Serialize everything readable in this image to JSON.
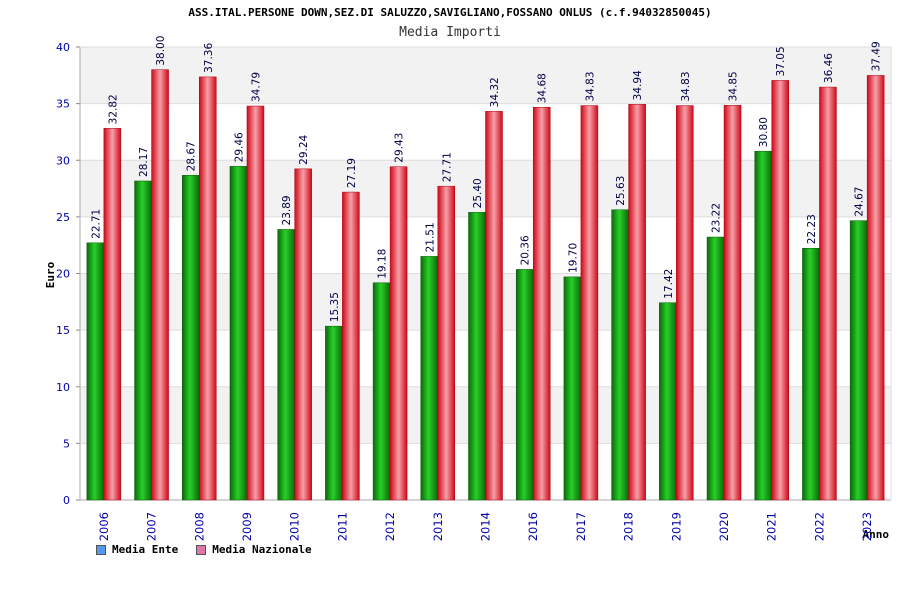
{
  "title": "ASS.ITAL.PERSONE DOWN,SEZ.DI SALUZZO,SAVIGLIANO,FOSSANO ONLUS (c.f.94032850045)",
  "subtitle": "Media Importi",
  "colors": {
    "ente": "#1aa01a",
    "nazionale": "#e8303a",
    "axis_text": "#0000aa"
  },
  "legend": [
    {
      "label": "Media Ente",
      "color": "#5599ee"
    },
    {
      "label": "Media Nazionale",
      "color": "#dd77aa"
    }
  ],
  "chart_data": {
    "type": "bar",
    "title": "Media Importi",
    "xlabel": "Anno",
    "ylabel": "Euro",
    "ylim": [
      0,
      40
    ],
    "yticks": [
      0,
      5,
      10,
      15,
      20,
      25,
      30,
      35,
      40
    ],
    "grid": true,
    "categories": [
      "2006",
      "2007",
      "2008",
      "2009",
      "2010",
      "2011",
      "2012",
      "2013",
      "2014",
      "2016",
      "2017",
      "2018",
      "2019",
      "2020",
      "2021",
      "2022",
      "2023"
    ],
    "series": [
      {
        "name": "Media Ente",
        "labels": [
          "22.71",
          "28.17",
          "28.67",
          "29.46",
          "23.89",
          "15.35",
          "19.18",
          "21.51",
          "25.40",
          "20.36",
          "19.70",
          "25.63",
          "17.42",
          "23.22",
          "30.80",
          "22.23",
          "24.67"
        ],
        "values": [
          22.71,
          28.17,
          28.67,
          29.46,
          23.89,
          15.35,
          19.18,
          21.51,
          25.4,
          20.36,
          19.7,
          25.63,
          17.42,
          23.22,
          30.8,
          22.23,
          24.67
        ]
      },
      {
        "name": "Media Nazionale",
        "labels": [
          "32.82",
          "38.00",
          "37.36",
          "34.79",
          "29.24",
          "27.19",
          "29.43",
          "27.71",
          "34.32",
          "34.68",
          "34.83",
          "34.94",
          "34.83",
          "34.85",
          "37.05",
          "36.46",
          "37.49"
        ],
        "values": [
          32.82,
          38.0,
          37.36,
          34.79,
          29.24,
          27.19,
          29.43,
          27.71,
          34.32,
          34.68,
          34.83,
          34.94,
          34.83,
          34.85,
          37.05,
          36.46,
          37.49
        ]
      }
    ]
  }
}
